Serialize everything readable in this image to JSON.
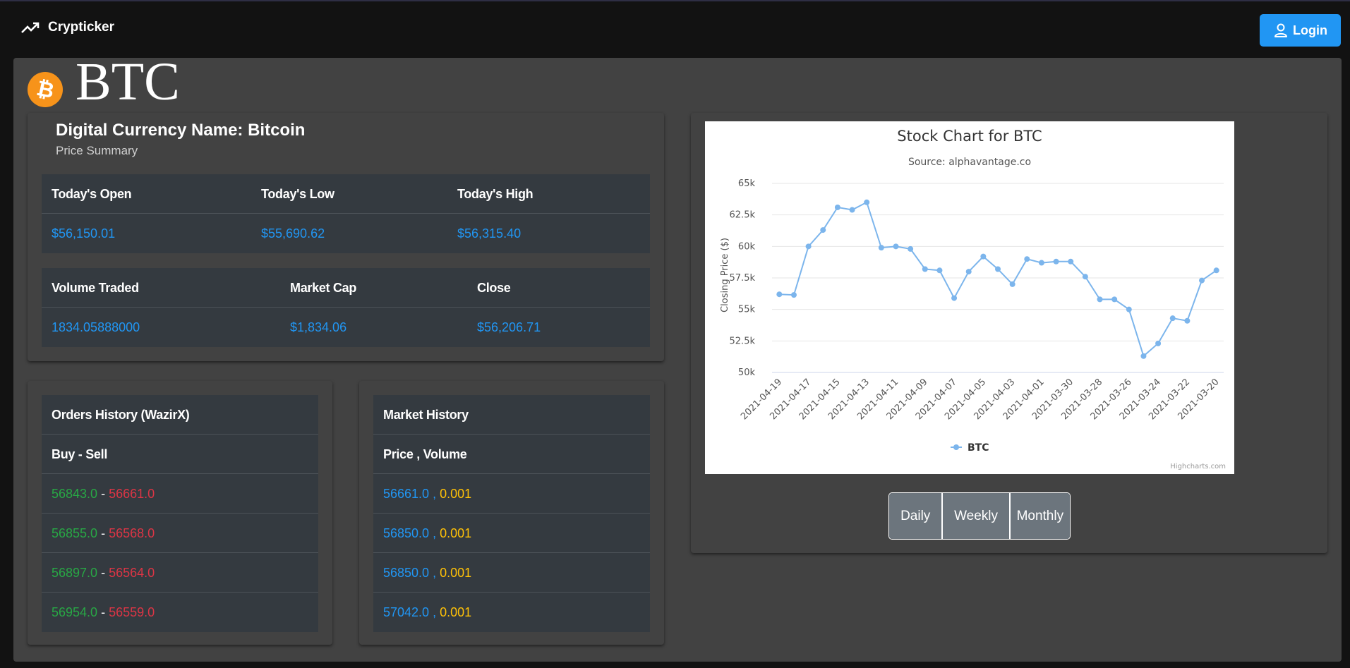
{
  "app": {
    "brand": "Crypticker",
    "login_label": "Login"
  },
  "coin": {
    "symbol": "BTC",
    "name_title": "Digital Currency Name: Bitcoin",
    "subtitle": "Price Summary",
    "badge_glyph": "₿",
    "badge_color": "#f7931a"
  },
  "summary1": {
    "headers": [
      "Today's Open",
      "Today's Low",
      "Today's High"
    ],
    "values": [
      "$56,150.01",
      "$55,690.62",
      "$56,315.40"
    ]
  },
  "summary2": {
    "headers": [
      "Volume Traded",
      "Market Cap",
      "Close"
    ],
    "values": [
      "1834.05888000",
      "$1,834.06",
      "$56,206.71"
    ]
  },
  "orders": {
    "title": "Orders History (WazirX)",
    "subheader": "Buy - Sell",
    "separator": "-",
    "rows": [
      {
        "buy": "56843.0",
        "sell": "56661.0"
      },
      {
        "buy": "56855.0",
        "sell": "56568.0"
      },
      {
        "buy": "56897.0",
        "sell": "56564.0"
      },
      {
        "buy": "56954.0",
        "sell": "56559.0"
      }
    ]
  },
  "market": {
    "title": "Market History",
    "subheader": "Price , Volume",
    "separator": ",",
    "rows": [
      {
        "price": "56661.0",
        "volume": "0.001"
      },
      {
        "price": "56850.0",
        "volume": "0.001"
      },
      {
        "price": "56850.0",
        "volume": "0.001"
      },
      {
        "price": "57042.0",
        "volume": "0.001"
      }
    ]
  },
  "range_buttons": [
    "Daily",
    "Weekly",
    "Monthly"
  ],
  "chart_data": {
    "type": "line",
    "title": "Stock Chart for BTC",
    "subtitle": "Source: alphavantage.co",
    "ylabel": "Closing Price ($)",
    "credits": "Highcharts.com",
    "ylim": [
      50000,
      65000
    ],
    "y_ticks": [
      50000,
      52500,
      55000,
      57500,
      60000,
      62500,
      65000
    ],
    "y_tick_labels": [
      "50k",
      "52.5k",
      "55k",
      "57.5k",
      "60k",
      "62.5k",
      "65k"
    ],
    "x_tick_labels": [
      "2021-04-19",
      "2021-04-17",
      "2021-04-15",
      "2021-04-13",
      "2021-04-11",
      "2021-04-09",
      "2021-04-07",
      "2021-04-05",
      "2021-04-03",
      "2021-04-01",
      "2021-03-30",
      "2021-03-28",
      "2021-03-26",
      "2021-03-24",
      "2021-03-22",
      "2021-03-20"
    ],
    "x": [
      "2021-04-19",
      "2021-04-18",
      "2021-04-17",
      "2021-04-16",
      "2021-04-15",
      "2021-04-14",
      "2021-04-13",
      "2021-04-12",
      "2021-04-11",
      "2021-04-10",
      "2021-04-09",
      "2021-04-08",
      "2021-04-07",
      "2021-04-06",
      "2021-04-05",
      "2021-04-04",
      "2021-04-03",
      "2021-04-02",
      "2021-04-01",
      "2021-03-31",
      "2021-03-30",
      "2021-03-29",
      "2021-03-28",
      "2021-03-27",
      "2021-03-26",
      "2021-03-25",
      "2021-03-24",
      "2021-03-23",
      "2021-03-22",
      "2021-03-21",
      "2021-03-20"
    ],
    "series": [
      {
        "name": "BTC",
        "color": "#7cb5ec",
        "values": [
          56200,
          56150,
          60000,
          61300,
          63100,
          62900,
          63500,
          59900,
          60000,
          59800,
          58200,
          58100,
          55900,
          58000,
          59200,
          58200,
          57000,
          59000,
          58700,
          58800,
          58800,
          57600,
          55800,
          55800,
          55000,
          51300,
          52300,
          54300,
          54100,
          57300,
          58100
        ]
      }
    ],
    "legend_position": "bottom-center",
    "grid": true
  }
}
